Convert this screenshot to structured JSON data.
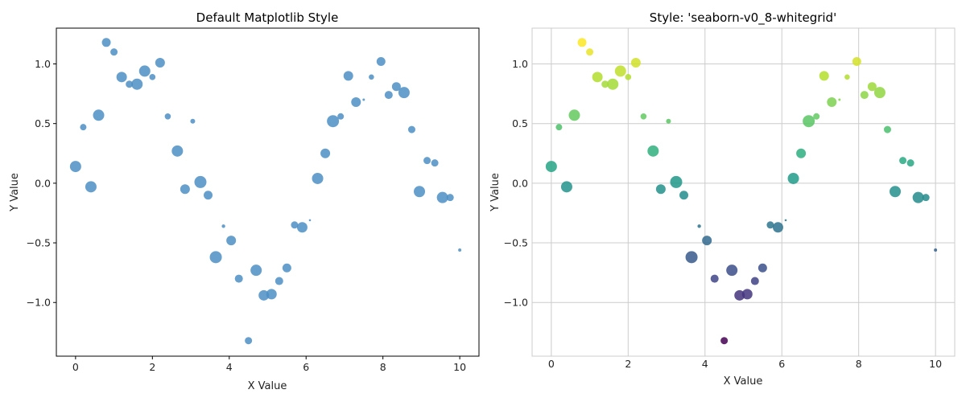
{
  "chart_data": [
    {
      "type": "scatter",
      "title": "Default Matplotlib Style",
      "xlabel": "X Value",
      "ylabel": "Y Value",
      "xlim": [
        -0.5,
        10.5
      ],
      "ylim": [
        -1.45,
        1.3
      ],
      "xticks": [
        0,
        2,
        4,
        6,
        8,
        10
      ],
      "yticks": [
        -1.0,
        -0.5,
        0.0,
        0.5,
        1.0
      ],
      "xtick_labels": [
        "0",
        "2",
        "4",
        "6",
        "8",
        "10"
      ],
      "ytick_labels": [
        "−1.0",
        "−0.5",
        "0.0",
        "0.5",
        "1.0"
      ],
      "grid": false,
      "color": "#4c8ec4",
      "points": [
        {
          "x": 0.0,
          "y": 0.14,
          "s": 7
        },
        {
          "x": 0.2,
          "y": 0.47,
          "s": 4
        },
        {
          "x": 0.4,
          "y": -0.03,
          "s": 7
        },
        {
          "x": 0.6,
          "y": 0.57,
          "s": 7
        },
        {
          "x": 0.8,
          "y": 1.18,
          "s": 5.5
        },
        {
          "x": 1.0,
          "y": 1.1,
          "s": 4.5
        },
        {
          "x": 1.2,
          "y": 0.89,
          "s": 6.5
        },
        {
          "x": 1.4,
          "y": 0.83,
          "s": 4.5
        },
        {
          "x": 1.6,
          "y": 0.83,
          "s": 7
        },
        {
          "x": 1.8,
          "y": 0.94,
          "s": 7
        },
        {
          "x": 2.0,
          "y": 0.89,
          "s": 3.8
        },
        {
          "x": 2.2,
          "y": 1.01,
          "s": 6
        },
        {
          "x": 2.4,
          "y": 0.56,
          "s": 3.8
        },
        {
          "x": 3.05,
          "y": 0.52,
          "s": 3
        },
        {
          "x": 2.65,
          "y": 0.27,
          "s": 7
        },
        {
          "x": 2.85,
          "y": -0.05,
          "s": 6
        },
        {
          "x": 3.25,
          "y": 0.01,
          "s": 7.5
        },
        {
          "x": 3.45,
          "y": -0.1,
          "s": 5.5
        },
        {
          "x": 3.65,
          "y": -0.62,
          "s": 7.5
        },
        {
          "x": 3.85,
          "y": -0.36,
          "s": 2.2
        },
        {
          "x": 4.05,
          "y": -0.48,
          "s": 6
        },
        {
          "x": 4.25,
          "y": -0.8,
          "s": 5
        },
        {
          "x": 4.5,
          "y": -1.32,
          "s": 4.5
        },
        {
          "x": 4.7,
          "y": -0.73,
          "s": 7
        },
        {
          "x": 4.9,
          "y": -0.94,
          "s": 6.5
        },
        {
          "x": 5.1,
          "y": -0.93,
          "s": 6.5
        },
        {
          "x": 5.3,
          "y": -0.82,
          "s": 5
        },
        {
          "x": 5.5,
          "y": -0.71,
          "s": 5.5
        },
        {
          "x": 5.7,
          "y": -0.35,
          "s": 4.5
        },
        {
          "x": 5.9,
          "y": -0.37,
          "s": 6.5
        },
        {
          "x": 6.1,
          "y": -0.31,
          "s": 1.3
        },
        {
          "x": 6.3,
          "y": 0.04,
          "s": 7
        },
        {
          "x": 6.5,
          "y": 0.25,
          "s": 6
        },
        {
          "x": 6.7,
          "y": 0.52,
          "s": 7.5
        },
        {
          "x": 6.9,
          "y": 0.56,
          "s": 4
        },
        {
          "x": 7.1,
          "y": 0.9,
          "s": 6
        },
        {
          "x": 7.3,
          "y": 0.68,
          "s": 6
        },
        {
          "x": 7.5,
          "y": 0.7,
          "s": 1.5
        },
        {
          "x": 7.7,
          "y": 0.89,
          "s": 3.3
        },
        {
          "x": 7.95,
          "y": 1.02,
          "s": 5.5
        },
        {
          "x": 8.15,
          "y": 0.74,
          "s": 5
        },
        {
          "x": 8.35,
          "y": 0.81,
          "s": 5.5
        },
        {
          "x": 8.55,
          "y": 0.76,
          "s": 7
        },
        {
          "x": 8.75,
          "y": 0.45,
          "s": 4.5
        },
        {
          "x": 8.95,
          "y": -0.07,
          "s": 7
        },
        {
          "x": 9.15,
          "y": 0.19,
          "s": 4.5
        },
        {
          "x": 9.35,
          "y": 0.17,
          "s": 4.5
        },
        {
          "x": 9.55,
          "y": -0.12,
          "s": 7
        },
        {
          "x": 9.75,
          "y": -0.12,
          "s": 4.5
        },
        {
          "x": 10.0,
          "y": -0.56,
          "s": 2
        }
      ]
    },
    {
      "type": "scatter",
      "title": "Style: 'seaborn-v0_8-whitegrid'",
      "xlabel": "X Value",
      "ylabel": "Y Value",
      "xlim": [
        -0.5,
        10.5
      ],
      "ylim": [
        -1.45,
        1.3
      ],
      "xticks": [
        0,
        2,
        4,
        6,
        8,
        10
      ],
      "yticks": [
        -1.0,
        -0.5,
        0.0,
        0.5,
        1.0
      ],
      "xtick_labels": [
        "0",
        "2",
        "4",
        "6",
        "8",
        "10"
      ],
      "ytick_labels": [
        "−1.0",
        "−0.5",
        "0.0",
        "0.5",
        "1.0"
      ],
      "grid": true,
      "colormap": "viridis",
      "color_value": "y",
      "points": [
        {
          "x": 0.0,
          "y": 0.14,
          "s": 7
        },
        {
          "x": 0.2,
          "y": 0.47,
          "s": 4
        },
        {
          "x": 0.4,
          "y": -0.03,
          "s": 7
        },
        {
          "x": 0.6,
          "y": 0.57,
          "s": 7
        },
        {
          "x": 0.8,
          "y": 1.18,
          "s": 5.5
        },
        {
          "x": 1.0,
          "y": 1.1,
          "s": 4.5
        },
        {
          "x": 1.2,
          "y": 0.89,
          "s": 6.5
        },
        {
          "x": 1.4,
          "y": 0.83,
          "s": 4.5
        },
        {
          "x": 1.6,
          "y": 0.83,
          "s": 7
        },
        {
          "x": 1.8,
          "y": 0.94,
          "s": 7
        },
        {
          "x": 2.0,
          "y": 0.89,
          "s": 3.8
        },
        {
          "x": 2.2,
          "y": 1.01,
          "s": 6
        },
        {
          "x": 2.4,
          "y": 0.56,
          "s": 3.8
        },
        {
          "x": 3.05,
          "y": 0.52,
          "s": 3
        },
        {
          "x": 2.65,
          "y": 0.27,
          "s": 7
        },
        {
          "x": 2.85,
          "y": -0.05,
          "s": 6
        },
        {
          "x": 3.25,
          "y": 0.01,
          "s": 7.5
        },
        {
          "x": 3.45,
          "y": -0.1,
          "s": 5.5
        },
        {
          "x": 3.65,
          "y": -0.62,
          "s": 7.5
        },
        {
          "x": 3.85,
          "y": -0.36,
          "s": 2.2
        },
        {
          "x": 4.05,
          "y": -0.48,
          "s": 6
        },
        {
          "x": 4.25,
          "y": -0.8,
          "s": 5
        },
        {
          "x": 4.5,
          "y": -1.32,
          "s": 4.5
        },
        {
          "x": 4.7,
          "y": -0.73,
          "s": 7
        },
        {
          "x": 4.9,
          "y": -0.94,
          "s": 6.5
        },
        {
          "x": 5.1,
          "y": -0.93,
          "s": 6.5
        },
        {
          "x": 5.3,
          "y": -0.82,
          "s": 5
        },
        {
          "x": 5.5,
          "y": -0.71,
          "s": 5.5
        },
        {
          "x": 5.7,
          "y": -0.35,
          "s": 4.5
        },
        {
          "x": 5.9,
          "y": -0.37,
          "s": 6.5
        },
        {
          "x": 6.1,
          "y": -0.31,
          "s": 1.3
        },
        {
          "x": 6.3,
          "y": 0.04,
          "s": 7
        },
        {
          "x": 6.5,
          "y": 0.25,
          "s": 6
        },
        {
          "x": 6.7,
          "y": 0.52,
          "s": 7.5
        },
        {
          "x": 6.9,
          "y": 0.56,
          "s": 4
        },
        {
          "x": 7.1,
          "y": 0.9,
          "s": 6
        },
        {
          "x": 7.3,
          "y": 0.68,
          "s": 6
        },
        {
          "x": 7.5,
          "y": 0.7,
          "s": 1.5
        },
        {
          "x": 7.7,
          "y": 0.89,
          "s": 3.3
        },
        {
          "x": 7.95,
          "y": 1.02,
          "s": 5.5
        },
        {
          "x": 8.15,
          "y": 0.74,
          "s": 5
        },
        {
          "x": 8.35,
          "y": 0.81,
          "s": 5.5
        },
        {
          "x": 8.55,
          "y": 0.76,
          "s": 7
        },
        {
          "x": 8.75,
          "y": 0.45,
          "s": 4.5
        },
        {
          "x": 8.95,
          "y": -0.07,
          "s": 7
        },
        {
          "x": 9.15,
          "y": 0.19,
          "s": 4.5
        },
        {
          "x": 9.35,
          "y": 0.17,
          "s": 4.5
        },
        {
          "x": 9.55,
          "y": -0.12,
          "s": 7
        },
        {
          "x": 9.75,
          "y": -0.12,
          "s": 4.5
        },
        {
          "x": 10.0,
          "y": -0.56,
          "s": 2
        }
      ]
    }
  ]
}
